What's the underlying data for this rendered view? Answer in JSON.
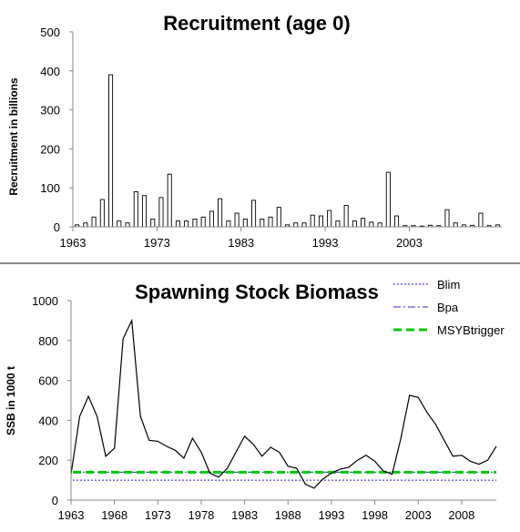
{
  "chart_data": [
    {
      "type": "bar",
      "title": "Recruitment (age 0)",
      "xlabel": "",
      "ylabel": "Recruitment in billions",
      "ylim": [
        0,
        500
      ],
      "yticks": [
        0,
        100,
        200,
        300,
        400,
        500
      ],
      "xticks": [
        1963,
        1973,
        1983,
        1993,
        2003
      ],
      "grid": false,
      "x": [
        1963,
        1964,
        1965,
        1966,
        1967,
        1968,
        1969,
        1970,
        1971,
        1972,
        1973,
        1974,
        1975,
        1976,
        1977,
        1978,
        1979,
        1980,
        1981,
        1982,
        1983,
        1984,
        1985,
        1986,
        1987,
        1988,
        1989,
        1990,
        1991,
        1992,
        1993,
        1994,
        1995,
        1996,
        1997,
        1998,
        1999,
        2000,
        2001,
        2002,
        2003,
        2004,
        2005,
        2006,
        2007,
        2008,
        2009,
        2010,
        2011,
        2012,
        2013
      ],
      "values": [
        5,
        10,
        25,
        70,
        390,
        15,
        10,
        90,
        80,
        20,
        75,
        135,
        15,
        15,
        20,
        25,
        40,
        72,
        15,
        35,
        20,
        68,
        20,
        25,
        50,
        5,
        10,
        10,
        30,
        28,
        42,
        15,
        55,
        15,
        22,
        12,
        10,
        140,
        28,
        3,
        3,
        2,
        4,
        3,
        44,
        10,
        5,
        4,
        35,
        3,
        5
      ]
    },
    {
      "type": "line",
      "title": "Spawning Stock Biomass",
      "xlabel": "",
      "ylabel": "SSB in 1000 t",
      "ylim": [
        0,
        1000
      ],
      "yticks": [
        0,
        200,
        400,
        600,
        800,
        1000
      ],
      "xticks": [
        1963,
        1968,
        1973,
        1978,
        1983,
        1988,
        1993,
        1998,
        2003,
        2008
      ],
      "grid": false,
      "legend_position": "top-right",
      "x": [
        1963,
        1964,
        1965,
        1966,
        1967,
        1968,
        1969,
        1970,
        1971,
        1972,
        1973,
        1974,
        1975,
        1976,
        1977,
        1978,
        1979,
        1980,
        1981,
        1982,
        1983,
        1984,
        1985,
        1986,
        1987,
        1988,
        1989,
        1990,
        1991,
        1992,
        1993,
        1994,
        1995,
        1996,
        1997,
        1998,
        1999,
        2000,
        2001,
        2002,
        2003,
        2004,
        2005,
        2006,
        2007,
        2008,
        2009,
        2010,
        2011,
        2012
      ],
      "ssb": [
        130,
        420,
        520,
        420,
        220,
        260,
        810,
        900,
        420,
        300,
        295,
        270,
        250,
        210,
        310,
        240,
        135,
        115,
        160,
        240,
        320,
        280,
        220,
        265,
        240,
        170,
        160,
        80,
        60,
        105,
        135,
        155,
        165,
        200,
        225,
        195,
        145,
        130,
        310,
        525,
        515,
        440,
        380,
        300,
        220,
        225,
        195,
        180,
        200,
        270
      ],
      "series": [
        {
          "name": "Blim",
          "value": 100,
          "color": "#1a1aff",
          "style": "dotted"
        },
        {
          "name": "Bpa",
          "value": 140,
          "color": "#5555dd",
          "style": "dash-dot"
        },
        {
          "name": "MSYBtrigger",
          "value": 140,
          "color": "#00cc00",
          "style": "dashed"
        }
      ]
    }
  ]
}
